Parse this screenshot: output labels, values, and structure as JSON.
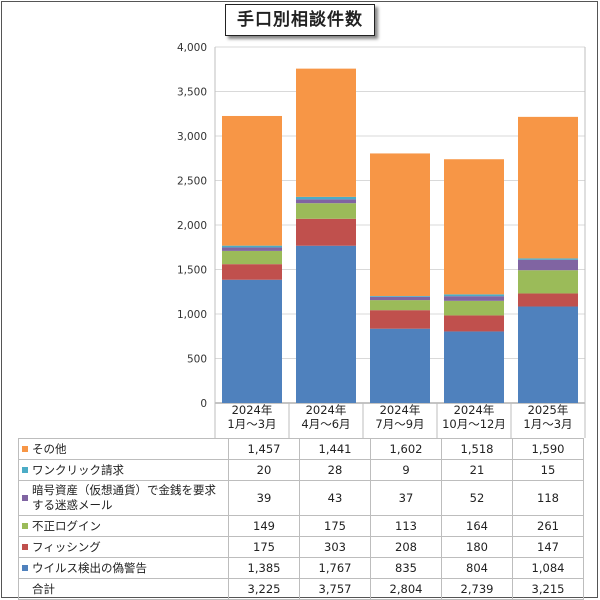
{
  "chart_data": {
    "type": "bar",
    "stacked": true,
    "title": "手口別相談件数",
    "categories": [
      "2024年\n1月～3月",
      "2024年\n4月～6月",
      "2024年\n7月～9月",
      "2024年\n10月～12月",
      "2025年\n1月～3月"
    ],
    "ylim": [
      0,
      4000
    ],
    "yticks": [
      "0",
      "500",
      "1,000",
      "1,500",
      "2,000",
      "2,500",
      "3,000",
      "3,500",
      "4,000"
    ],
    "grid": true,
    "series": [
      {
        "name": "ウイルス検出の偽警告",
        "color": "#4f81bd",
        "values": [
          1385,
          1767,
          835,
          804,
          1084
        ],
        "labels": [
          "1,385",
          "1,767",
          "835",
          "804",
          "1,084"
        ]
      },
      {
        "name": "フィッシング",
        "color": "#c0504d",
        "values": [
          175,
          303,
          208,
          180,
          147
        ],
        "labels": [
          "175",
          "303",
          "208",
          "180",
          "147"
        ]
      },
      {
        "name": "不正ログイン",
        "color": "#9bbb59",
        "values": [
          149,
          175,
          113,
          164,
          261
        ],
        "labels": [
          "149",
          "175",
          "113",
          "164",
          "261"
        ]
      },
      {
        "name": "暗号資産（仮想通貨）で金銭を要求　　する迷惑メール",
        "color": "#8064a2",
        "values": [
          39,
          43,
          37,
          52,
          118
        ],
        "labels": [
          "39",
          "43",
          "37",
          "52",
          "118"
        ]
      },
      {
        "name": "ワンクリック請求",
        "color": "#4bacc6",
        "values": [
          20,
          28,
          9,
          21,
          15
        ],
        "labels": [
          "20",
          "28",
          "9",
          "21",
          "15"
        ]
      },
      {
        "name": "その他",
        "color": "#f79646",
        "values": [
          1457,
          1441,
          1602,
          1518,
          1590
        ],
        "labels": [
          "1,457",
          "1,441",
          "1,602",
          "1,518",
          "1,590"
        ]
      }
    ],
    "totals": {
      "name": "合計",
      "values": [
        3225,
        3757,
        2804,
        2739,
        3215
      ],
      "labels": [
        "3,225",
        "3,757",
        "2,804",
        "2,739",
        "3,215"
      ]
    }
  }
}
